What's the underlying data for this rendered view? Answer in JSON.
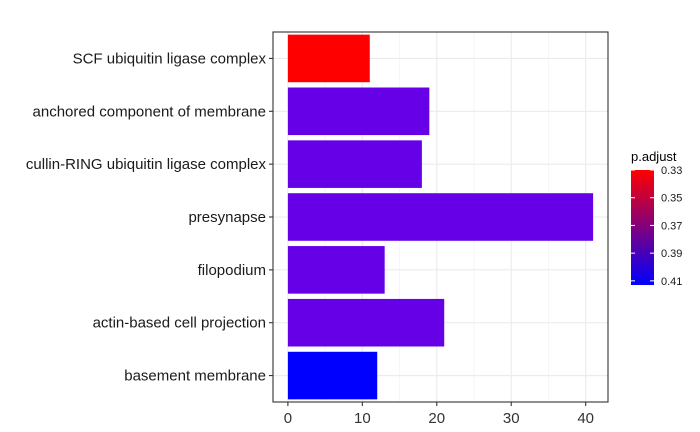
{
  "chart_data": {
    "type": "bar",
    "orientation": "horizontal",
    "categories": [
      "SCF ubiquitin ligase complex",
      "anchored component of membrane",
      "cullin-RING ubiquitin ligase complex",
      "presynapse",
      "filopodium",
      "actin-based cell projection",
      "basement membrane"
    ],
    "values": [
      11,
      19,
      18,
      41,
      13,
      21,
      12
    ],
    "p_adjust": [
      0.33,
      0.398,
      0.398,
      0.398,
      0.398,
      0.398,
      0.411
    ],
    "bar_colors": [
      "#ff0000",
      "#6600e6",
      "#6600e6",
      "#6600e6",
      "#6600e6",
      "#6600e6",
      "#0000ff"
    ],
    "xlim": [
      -2,
      43
    ],
    "x_ticks": [
      0,
      10,
      20,
      30,
      40
    ],
    "x_tick_labels": [
      "0",
      "10",
      "20",
      "30",
      "40"
    ],
    "grid": true,
    "legend": {
      "title": "p.adjust",
      "placement": "right",
      "type": "colorbar",
      "range": [
        0.33,
        0.413
      ],
      "ticks": [
        0.33,
        0.35,
        0.37,
        0.39,
        0.41
      ],
      "tick_labels": [
        "0.33",
        "0.35",
        "0.37",
        "0.39",
        "0.41"
      ],
      "color_low_value": "#ff0000",
      "color_high_value": "#0000ff"
    }
  }
}
